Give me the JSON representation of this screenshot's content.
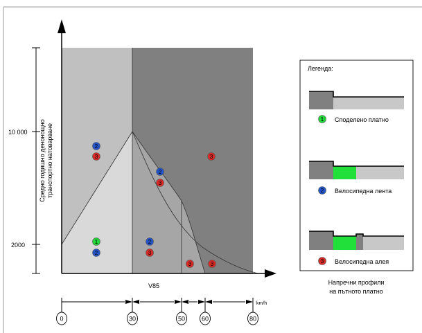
{
  "colors": {
    "zone_light": "#d9d9d9",
    "zone_mid_light": "#c0c0c0",
    "zone_mid": "#a6a6a6",
    "zone_dark": "#808080",
    "green": "#22d83a",
    "blue": "#2455c8",
    "red": "#d92b26"
  },
  "diagram": {
    "y_axis_label_line1": "Средно годишно денонощно",
    "y_axis_label_line2": "транспортно натоварване",
    "y_ticks": [
      "10 000",
      "2000"
    ],
    "x_axis_label": "V85",
    "x_unit": "km/h",
    "x_ticks": [
      "0",
      "30",
      "50",
      "60",
      "80"
    ]
  },
  "markers": [
    {
      "id": "2",
      "color": "blue"
    },
    {
      "id": "3",
      "color": "red"
    },
    {
      "id": "3",
      "color": "red"
    },
    {
      "id": "2",
      "color": "blue"
    },
    {
      "id": "3",
      "color": "red"
    },
    {
      "id": "1",
      "color": "green"
    },
    {
      "id": "2",
      "color": "blue"
    },
    {
      "id": "2",
      "color": "blue"
    },
    {
      "id": "3",
      "color": "red"
    },
    {
      "id": "3",
      "color": "red"
    },
    {
      "id": "3",
      "color": "red"
    }
  ],
  "legend": {
    "title": "Легенда:",
    "items": [
      {
        "id": "1",
        "color": "green",
        "label": "Споделено платно"
      },
      {
        "id": "2",
        "color": "blue",
        "label": "Велосипедна лента"
      },
      {
        "id": "3",
        "color": "red",
        "label": "Велосипедна алея"
      }
    ],
    "caption_line1": "Напречни профили",
    "caption_line2": "на пътното платно"
  }
}
